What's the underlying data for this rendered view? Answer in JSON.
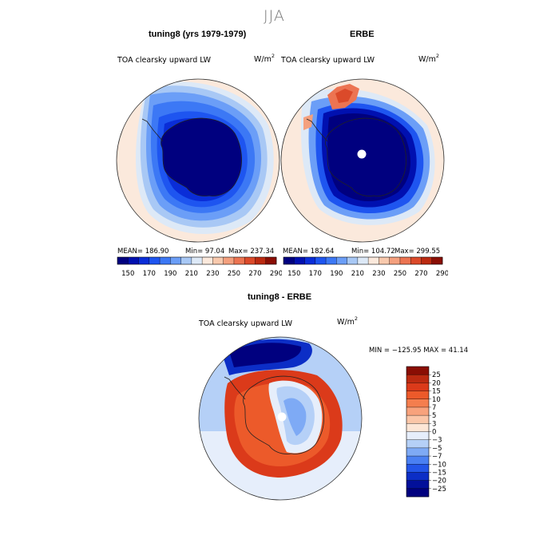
{
  "figure": {
    "season": "JJA"
  },
  "chart_data": [
    {
      "type": "heatmap",
      "panel": "model",
      "title": "tuning8 (yrs 1979-1979)",
      "variable": "TOA clearsky upward LW",
      "units": "W/m",
      "units_exp": "2",
      "stats": {
        "mean": "MEAN= 186.90",
        "min": "Min=  97.04",
        "max": "Max= 237.34"
      },
      "contour_levels": [
        150,
        160,
        170,
        180,
        190,
        200,
        210,
        220,
        230,
        240,
        250,
        260,
        270,
        280,
        290
      ],
      "tick_labels": [
        "150",
        "170",
        "190",
        "210",
        "230",
        "250",
        "270",
        "290"
      ],
      "colors": [
        "#00007f",
        "#0010b0",
        "#0a2dd8",
        "#1e55f0",
        "#3c78f5",
        "#6b9ef7",
        "#a8c8f5",
        "#dde9f7",
        "#fbe9dc",
        "#f8c9ad",
        "#f4a07e",
        "#ec7452",
        "#db4a2a",
        "#bb2a11",
        "#8a0e04"
      ]
    },
    {
      "type": "heatmap",
      "panel": "observations",
      "title": "ERBE",
      "variable": "TOA clearsky upward LW",
      "units": "W/m",
      "units_exp": "2",
      "stats": {
        "mean": "MEAN= 182.64",
        "min": "Min= 104.72",
        "max": "Max= 299.55"
      },
      "contour_levels": [
        150,
        160,
        170,
        180,
        190,
        200,
        210,
        220,
        230,
        240,
        250,
        260,
        270,
        280,
        290
      ],
      "tick_labels": [
        "150",
        "170",
        "190",
        "210",
        "230",
        "250",
        "270",
        "290"
      ],
      "colors": [
        "#00007f",
        "#0010b0",
        "#0a2dd8",
        "#1e55f0",
        "#3c78f5",
        "#6b9ef7",
        "#a8c8f5",
        "#dde9f7",
        "#fbe9dc",
        "#f8c9ad",
        "#f4a07e",
        "#ec7452",
        "#db4a2a",
        "#bb2a11",
        "#8a0e04"
      ]
    },
    {
      "type": "heatmap",
      "panel": "difference",
      "title": "tuning8 - ERBE",
      "variable": "TOA clearsky upward LW",
      "units": "W/m",
      "units_exp": "2",
      "minmax": "MIN = −125.95  MAX =  41.14",
      "contour_levels": [
        -25,
        -20,
        -15,
        -10,
        -7,
        -5,
        -3,
        0,
        3,
        5,
        7,
        10,
        15,
        20,
        25
      ],
      "tick_labels": [
        "25",
        "20",
        "15",
        "10",
        "7",
        "5",
        "3",
        "0",
        "−3",
        "−5",
        "−7",
        "−10",
        "−15",
        "−20",
        "−25"
      ],
      "colors_top_to_bottom": [
        "#8a0e04",
        "#bb2a11",
        "#db3a1a",
        "#ec5a2a",
        "#f47e4e",
        "#f8a27c",
        "#fbc6a8",
        "#fde6d6",
        "#e6eefb",
        "#b5d0f7",
        "#7eaaf5",
        "#4a80f2",
        "#2355e8",
        "#0c2ec6",
        "#02109a",
        "#00007f"
      ]
    }
  ]
}
